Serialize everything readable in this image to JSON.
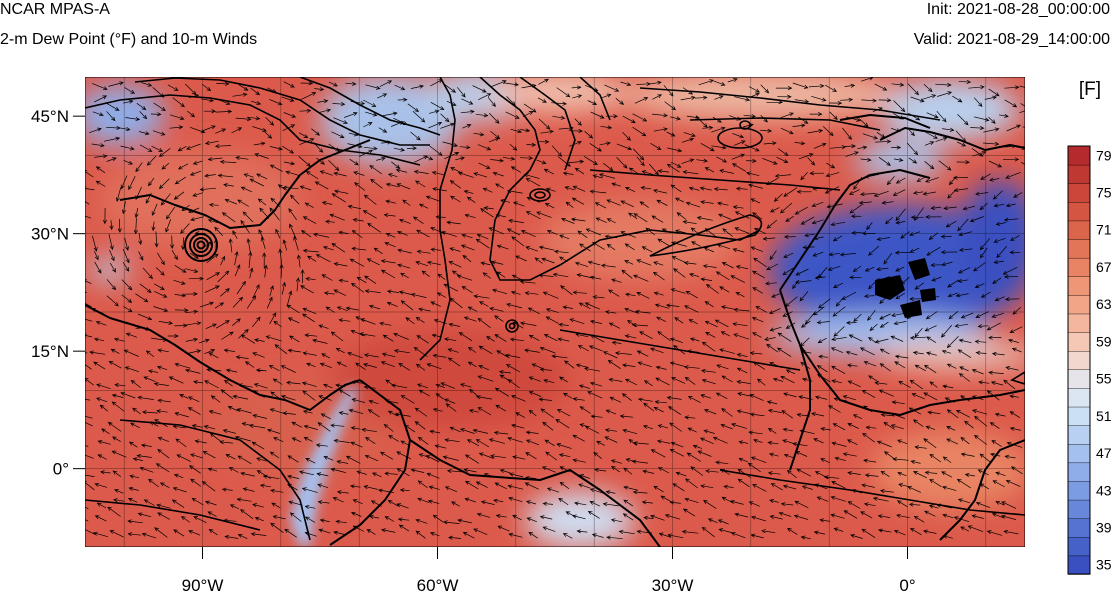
{
  "header": {
    "model": "NCAR MPAS-A",
    "field": "2-m Dew Point (°F) and 10-m Winds",
    "init": "Init: 2021-08-28_00:00:00",
    "valid": "Valid: 2021-08-29_14:00:00"
  },
  "map": {
    "lon_range": [
      -105,
      15
    ],
    "lat_range": [
      -10,
      50
    ],
    "lon_ticks": [
      {
        "value": -90,
        "label": "90°W"
      },
      {
        "value": -60,
        "label": "60°W"
      },
      {
        "value": -30,
        "label": "30°W"
      },
      {
        "value": 0,
        "label": "0°"
      }
    ],
    "lat_ticks": [
      {
        "value": 45,
        "label": "45°N"
      },
      {
        "value": 30,
        "label": "30°N"
      },
      {
        "value": 15,
        "label": "15°N"
      },
      {
        "value": 0,
        "label": "0°"
      }
    ],
    "gridlines": true,
    "grid_spacing_deg": 10,
    "colors": {
      "ocean": "#dc5a4b",
      "dry_desert": "#3d57c6",
      "cool_north": "#9fb8e2",
      "contour": "#000000"
    }
  },
  "colorbar": {
    "unit": "[F]",
    "min": 35,
    "max": 81,
    "step": 2,
    "labels": [
      "79",
      "75",
      "71",
      "67",
      "63",
      "59",
      "55",
      "51",
      "47",
      "43",
      "39",
      "35"
    ],
    "colors": [
      "#3a50c0",
      "#4562c9",
      "#5574d2",
      "#6787db",
      "#7b9be3",
      "#8fade9",
      "#a4c0ee",
      "#b8d1f2",
      "#cbdff5",
      "#dbe6f2",
      "#e6e4e8",
      "#f0d8cf",
      "#f4c8b5",
      "#f4b79e",
      "#f2a688",
      "#ee9675",
      "#e88464",
      "#e27457",
      "#db654b",
      "#d35542",
      "#cb473a",
      "#c03832",
      "#b52a2c",
      "#aa1c26"
    ]
  }
}
